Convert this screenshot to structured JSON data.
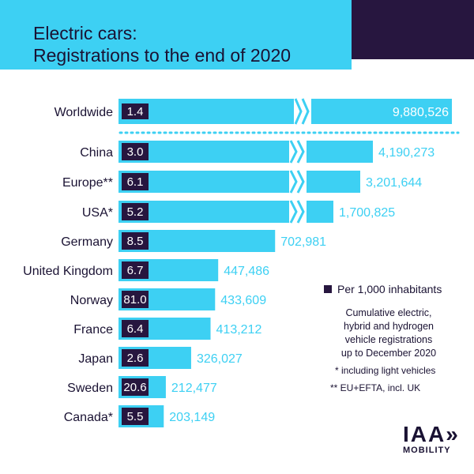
{
  "title_line1": "Electric cars:",
  "title_line2": "Registrations to the end of 2020",
  "colors": {
    "bar": "#3dd0f3",
    "badge": "#27163f",
    "text": "#1a1233",
    "value": "#3dd0f3"
  },
  "chart_data": {
    "type": "bar",
    "orientation": "horizontal",
    "title": "Electric cars: Registrations to the end of 2020",
    "categories": [
      "Worldwide",
      "China",
      "Europe**",
      "USA*",
      "Germany",
      "United Kingdom",
      "Norway",
      "France",
      "Japan",
      "Sweden",
      "Canada*"
    ],
    "values": [
      9880526,
      4190273,
      3201644,
      1700825,
      702981,
      447486,
      433609,
      413212,
      326027,
      212477,
      203149
    ],
    "value_labels": [
      "9,880,526",
      "4,190,273",
      "3,201,644",
      "1,700,825",
      "702,981",
      "447,486",
      "433,609",
      "413,212",
      "326,027",
      "212,477",
      "203,149"
    ],
    "per_1000_inhabitants": [
      "1.4",
      "3.0",
      "6.1",
      "5.2",
      "8.5",
      "6.7",
      "81.0",
      "6.4",
      "2.6",
      "20.6",
      "5.5"
    ],
    "broken_axis_bars": [
      "Worldwide",
      "China",
      "Europe**",
      "USA*"
    ]
  },
  "legend_label": "Per 1,000 inhabitants",
  "note_lines": [
    "Cumulative electric,",
    "hybrid and hydrogen",
    "vehicle registrations",
    "up to December 2020"
  ],
  "footnote1": "* including light vehicles",
  "footnote2": "** EU+EFTA, incl. UK",
  "logo_main": "IAA»",
  "logo_sub": "MOBILITY"
}
